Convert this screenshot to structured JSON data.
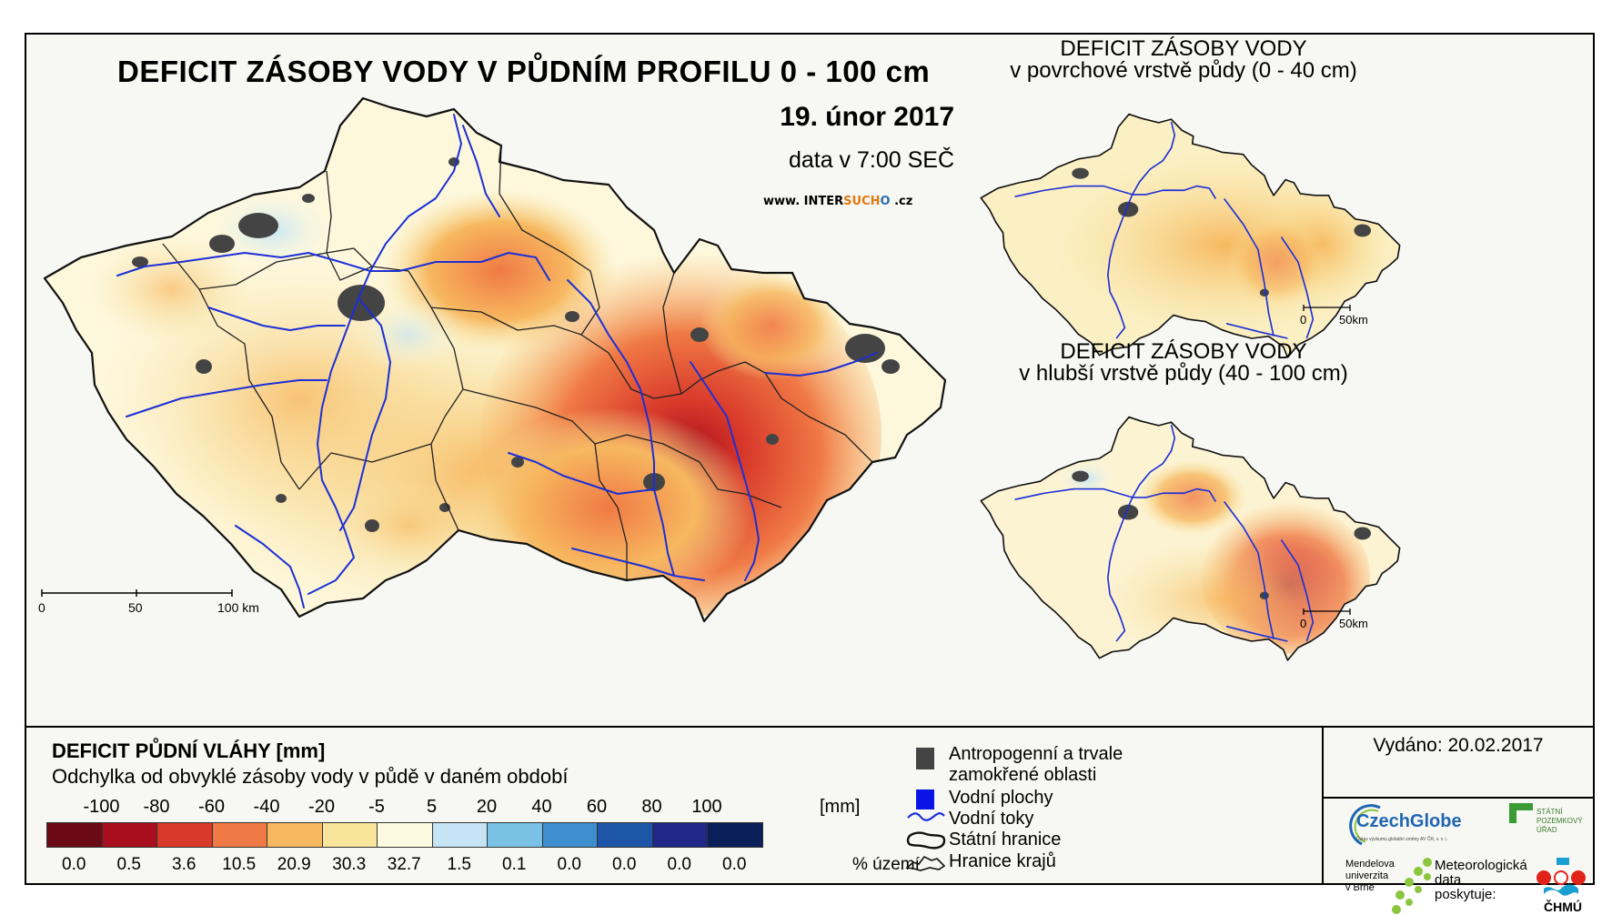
{
  "main_map": {
    "title": "DEFICIT ZÁSOBY VODY V PŮDNÍM PROFILU 0 - 100 cm",
    "date": "19. únor 2017",
    "time": "data v 7:00 SEČ",
    "website_prefix": "www. INTER",
    "website_suh": "SUCH",
    "website_ucho": "O",
    "website_suffix": " .cz",
    "scale_labels": [
      "0",
      "50",
      "100 km"
    ]
  },
  "inset_top": {
    "title_line1": "DEFICIT ZÁSOBY VODY",
    "title_line2": "v povrchové vrstvě půdy (0 - 40 cm)",
    "scale_labels": [
      "0",
      "50km"
    ]
  },
  "inset_bottom": {
    "title_line1": "DEFICIT ZÁSOBY VODY",
    "title_line2": "v hlubší vrstvě půdy (40 - 100 cm)",
    "scale_labels": [
      "0",
      "50km"
    ]
  },
  "legend": {
    "title": "DEFICIT PŮDNÍ VLÁHY [mm]",
    "subtitle": "Odchylka od obvyklé zásoby vody v půdě v daném období",
    "ticks": [
      "-100",
      "-80",
      "-60",
      "-40",
      "-20",
      "-5",
      "5",
      "20",
      "40",
      "60",
      "80",
      "100"
    ],
    "unit": "[mm]",
    "classes": [
      {
        "color": "#6b0a14",
        "percent": "0.0"
      },
      {
        "color": "#a80e1e",
        "percent": "0.5"
      },
      {
        "color": "#d8382a",
        "percent": "3.6"
      },
      {
        "color": "#f07a45",
        "percent": "10.5"
      },
      {
        "color": "#f7b860",
        "percent": "20.9"
      },
      {
        "color": "#f8e49a",
        "percent": "30.3"
      },
      {
        "color": "#fdfae2",
        "percent": "32.7"
      },
      {
        "color": "#c6e5f4",
        "percent": "1.5"
      },
      {
        "color": "#79c2e5",
        "percent": "0.1"
      },
      {
        "color": "#3f8fd0",
        "percent": "0.0"
      },
      {
        "color": "#1d55a8",
        "percent": "0.0"
      },
      {
        "color": "#1f2787",
        "percent": "0.0"
      },
      {
        "color": "#0b1f5a",
        "percent": "0.0"
      }
    ],
    "percent_unit": "% území"
  },
  "map_key": {
    "anthropogenic": "Antropogenní a trvale zamokřené oblasti",
    "anthropogenic_line1": "Antropogenní a trvale",
    "anthropogenic_line2": "zamokřené oblasti",
    "water_bodies": "Vodní plochy",
    "rivers": "Vodní toky",
    "state_border": "Státní hranice",
    "regional_border": "Hranice krajů"
  },
  "issued": "Vydáno: 20.02.2017",
  "logos": {
    "czechglobe": "CzechGlobe",
    "czechglobe_sub": "Ústav výzkumu globální změny AV ČR, v. v. i.",
    "spu": "STÁTNÍ\nPOZEMKOVÝ\nÚŘAD",
    "mendel": "Mendelova\nuniverzita\nv Brně",
    "chmi_lead": "Meteorologická\ndata\nposkytuje:",
    "chmi": "ČHMÚ"
  },
  "colors": {
    "river": "#1c2fd6",
    "urban": "#444444",
    "border": "#222222",
    "cz_green": "#8cc63f",
    "chmi_red": "#e2231a",
    "chmi_blue": "#1aa0d0"
  }
}
